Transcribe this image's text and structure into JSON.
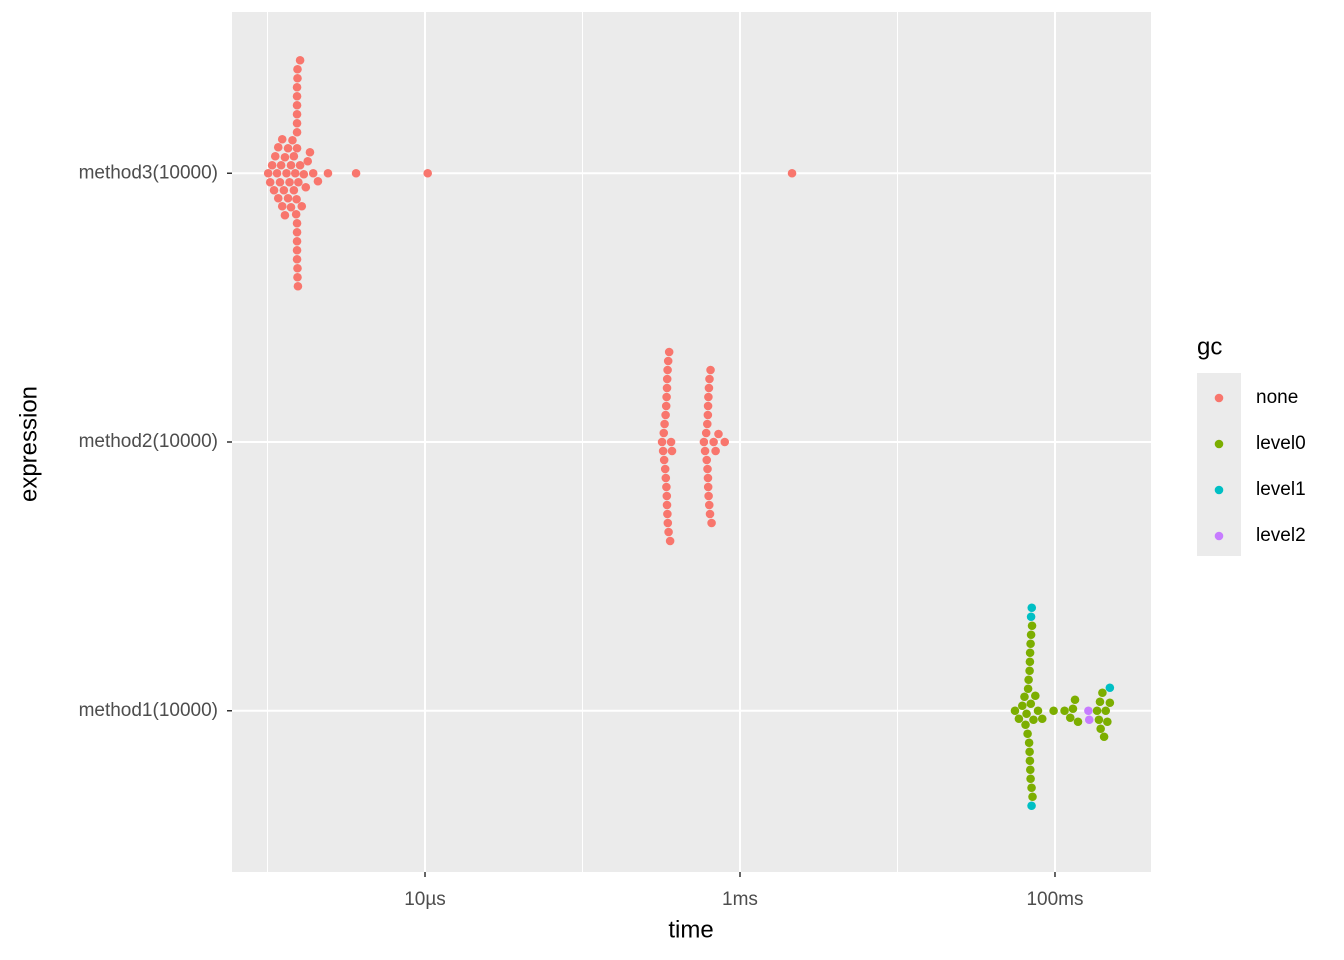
{
  "chart_data": {
    "type": "beeswarm",
    "x_label": "time",
    "y_label": "expression",
    "legend_title": "gc",
    "legend_position": "right",
    "x_log": true,
    "grid": true,
    "xlim": [
      5.95e-07,
      0.407
    ],
    "xticks": [
      {
        "value": 1e-05,
        "label": "10µs"
      },
      {
        "value": 0.001,
        "label": "1ms"
      },
      {
        "value": 0.1,
        "label": "100ms"
      }
    ],
    "x_minor_grid": [
      1e-06,
      0.0001,
      0.01
    ],
    "categories": [
      "method1(10000)",
      "method2(10000)",
      "method3(10000)"
    ],
    "series": [
      {
        "name": "none",
        "color": "#F8766D",
        "values": [
          [],
          [
            0.00032,
            0.000325,
            0.000328,
            0.00033,
            0.000332,
            0.000335,
            0.000337,
            0.000338,
            0.00034,
            0.000341,
            0.000342,
            0.000343,
            0.000344,
            0.000344,
            0.000345,
            0.000346,
            0.000347,
            0.000348,
            0.00035,
            0.000352,
            0.000355,
            0.00036,
            0.000365,
            0.00037,
            0.00059,
            0.0006,
            0.00061,
            0.000615,
            0.00062,
            0.000622,
            0.000625,
            0.000626,
            0.000627,
            0.000628,
            0.00063,
            0.000632,
            0.000635,
            0.000638,
            0.00064,
            0.000645,
            0.00065,
            0.00066,
            0.00068,
            0.0007,
            0.00073,
            0.0008
          ],
          [
            1.01e-06,
            1.04e-06,
            1.07e-06,
            1.1e-06,
            1.12e-06,
            1.15e-06,
            1.17e-06,
            1.17e-06,
            1.2e-06,
            1.22e-06,
            1.24e-06,
            1.24e-06,
            1.27e-06,
            1.29e-06,
            1.29e-06,
            1.32e-06,
            1.35e-06,
            1.35e-06,
            1.38e-06,
            1.41e-06,
            1.41e-06,
            1.44e-06,
            1.47e-06,
            1.47e-06,
            1.5e-06,
            1.52e-06,
            1.53e-06,
            1.54e-06,
            1.54e-06,
            1.54e-06,
            1.54e-06,
            1.54e-06,
            1.54e-06,
            1.54e-06,
            1.54e-06,
            1.54e-06,
            1.54e-06,
            1.54e-06,
            1.54e-06,
            1.55e-06,
            1.55e-06,
            1.55e-06,
            1.55e-06,
            1.56e-06,
            1.57e-06,
            1.61e-06,
            1.61e-06,
            1.65e-06,
            1.7e-06,
            1.75e-06,
            1.8e-06,
            1.86e-06,
            1.95e-06,
            2.09e-06,
            2.42e-06,
            3.65e-06,
            1.04e-05,
            0.00214
          ]
        ]
      },
      {
        "name": "level0",
        "color": "#7CAE00",
        "values": [
          [
            0.0557,
            0.059,
            0.062,
            0.064,
            0.065,
            0.066,
            0.067,
            0.0675,
            0.068,
            0.0685,
            0.069,
            0.069,
            0.0693,
            0.0693,
            0.0695,
            0.0697,
            0.07,
            0.07,
            0.0702,
            0.0705,
            0.071,
            0.0715,
            0.072,
            0.073,
            0.075,
            0.078,
            0.083,
            0.098,
            0.115,
            0.125,
            0.13,
            0.134,
            0.14,
            0.185,
            0.19,
            0.193,
            0.195,
            0.2,
            0.205,
            0.21,
            0.215,
            0.223
          ],
          [],
          []
        ]
      },
      {
        "name": "level1",
        "color": "#00BFC4",
        "values": [
          [
            0.0705,
            0.071,
            0.0712,
            0.223
          ],
          [],
          []
        ]
      },
      {
        "name": "level2",
        "color": "#C77CFF",
        "values": [
          [
            0.163,
            0.165
          ],
          [],
          []
        ]
      }
    ]
  }
}
